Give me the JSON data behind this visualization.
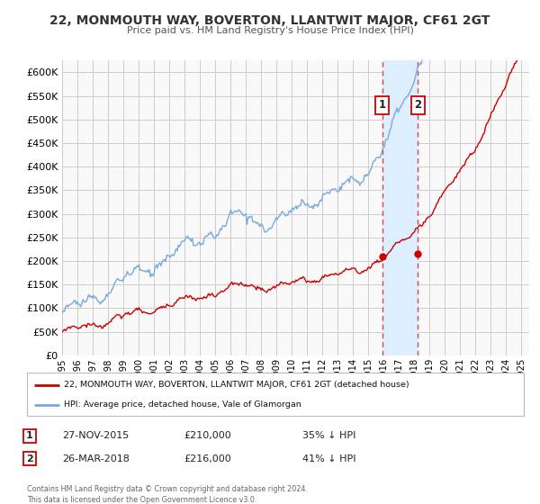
{
  "title": "22, MONMOUTH WAY, BOVERTON, LLANTWIT MAJOR, CF61 2GT",
  "subtitle": "Price paid vs. HM Land Registry's House Price Index (HPI)",
  "legend_line1": "22, MONMOUTH WAY, BOVERTON, LLANTWIT MAJOR, CF61 2GT (detached house)",
  "legend_line2": "HPI: Average price, detached house, Vale of Glamorgan",
  "annotation1_date": "27-NOV-2015",
  "annotation1_price": "£210,000",
  "annotation1_hpi": "35% ↓ HPI",
  "annotation2_date": "26-MAR-2018",
  "annotation2_price": "£216,000",
  "annotation2_hpi": "41% ↓ HPI",
  "footnote": "Contains HM Land Registry data © Crown copyright and database right 2024.\nThis data is licensed under the Open Government Licence v3.0.",
  "red_color": "#cc0000",
  "blue_color": "#7aaadd",
  "shading_color": "#ddeeff",
  "vline_color": "#dd4444",
  "grid_color": "#cccccc",
  "bg_color": "#f9f9f9",
  "ylim": [
    0,
    625000
  ],
  "yticks": [
    0,
    50000,
    100000,
    150000,
    200000,
    250000,
    300000,
    350000,
    400000,
    450000,
    500000,
    550000,
    600000
  ],
  "sale1_year": 2015.91,
  "sale1_value": 210000,
  "sale2_year": 2018.23,
  "sale2_value": 216000,
  "xmin": 1995,
  "xmax": 2025.5
}
